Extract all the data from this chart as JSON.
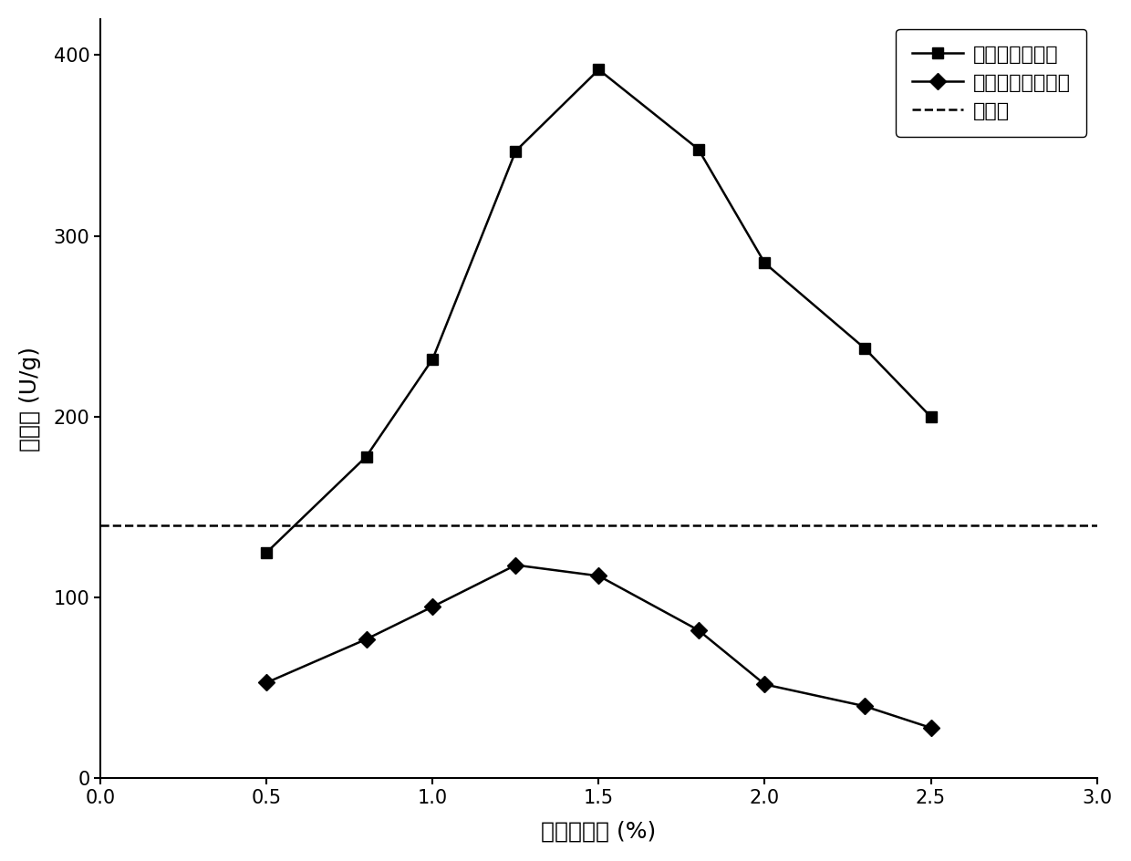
{
  "series1_x": [
    0.5,
    0.8,
    1.0,
    1.25,
    1.5,
    1.8,
    2.0,
    2.3,
    2.5
  ],
  "series1_y": [
    125,
    178,
    232,
    347,
    392,
    348,
    285,
    238,
    200
  ],
  "series2_x": [
    0.5,
    0.8,
    1.0,
    1.25,
    1.5,
    1.8,
    2.0,
    2.3,
    2.5
  ],
  "series2_y": [
    53,
    77,
    95,
    118,
    112,
    82,
    52,
    40,
    28
  ],
  "free_enzyme_y": 140,
  "series1_label": "印迹交联酶聚体",
  "series2_label": "无印迹交联酶聚体",
  "free_enzyme_label": "游离酶",
  "xlabel": "戊二醋浓度 (%)",
  "ylabel": "酶活力 (U/g)",
  "xlim": [
    0.0,
    3.0
  ],
  "ylim": [
    0,
    420
  ],
  "xticks": [
    0.0,
    0.5,
    1.0,
    1.5,
    2.0,
    2.5,
    3.0
  ],
  "yticks": [
    0,
    100,
    200,
    300,
    400
  ],
  "line_color": "#000000",
  "marker_size": 9,
  "linewidth": 1.8,
  "legend_fontsize": 16,
  "axis_label_fontsize": 18,
  "tick_fontsize": 15,
  "background_color": "#ffffff"
}
